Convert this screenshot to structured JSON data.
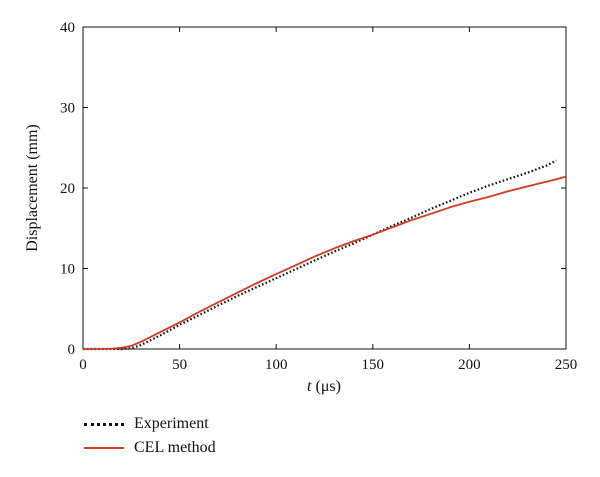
{
  "chart_data": {
    "type": "line",
    "title": "",
    "xlabel_italic": "t",
    "xlabel_rest": " (μs)",
    "ylabel": "Displacement (mm)",
    "xlim": [
      0,
      250
    ],
    "ylim": [
      0,
      40
    ],
    "xticks": [
      0,
      50,
      100,
      150,
      200,
      250
    ],
    "yticks": [
      0,
      10,
      20,
      30,
      40
    ],
    "grid": false,
    "legend_placement": "below-left",
    "series": [
      {
        "name": "Experiment",
        "style": "dotted",
        "color": "#111111",
        "x": [
          0,
          10,
          20,
          25,
          30,
          40,
          50,
          60,
          70,
          80,
          90,
          100,
          110,
          120,
          130,
          140,
          150,
          160,
          170,
          180,
          190,
          200,
          210,
          220,
          230,
          240,
          245
        ],
        "y": [
          0,
          0,
          0,
          0.1,
          0.5,
          1.7,
          3.0,
          4.2,
          5.4,
          6.6,
          7.7,
          8.8,
          9.9,
          11.0,
          12.1,
          13.1,
          14.2,
          15.3,
          16.3,
          17.4,
          18.4,
          19.4,
          20.3,
          21.1,
          21.9,
          22.8,
          23.4
        ]
      },
      {
        "name": "CEL method",
        "style": "solid",
        "color": "#d23a22",
        "x": [
          0,
          10,
          15,
          20,
          25,
          30,
          40,
          50,
          60,
          70,
          80,
          90,
          100,
          110,
          120,
          130,
          140,
          150,
          160,
          170,
          180,
          190,
          200,
          210,
          220,
          230,
          240,
          250
        ],
        "y": [
          0,
          0,
          0.05,
          0.15,
          0.4,
          0.9,
          2.1,
          3.3,
          4.6,
          5.8,
          7.0,
          8.2,
          9.3,
          10.4,
          11.5,
          12.5,
          13.4,
          14.2,
          15.1,
          16.0,
          16.8,
          17.6,
          18.3,
          18.9,
          19.6,
          20.2,
          20.8,
          21.4
        ]
      }
    ]
  }
}
